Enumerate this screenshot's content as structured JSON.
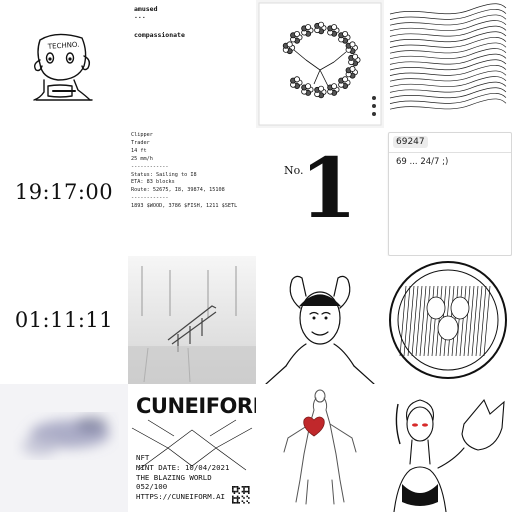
{
  "tiles": {
    "robot": {
      "badge_text": "TECHNO."
    },
    "words": {
      "top_word": "amused",
      "dots": "...",
      "bottom_word": "compassionate"
    },
    "clock_1": {
      "time": "19:17:00"
    },
    "clock_2": {
      "time": "01:11:11"
    },
    "ship_status": {
      "lines": [
        "Clipper",
        "Trader",
        "14 ft",
        "25 mm/h",
        "------------",
        "Status: Sailing to I8",
        "ETA: 83 blocks",
        "Route: 52675, I8, 39874, 15108",
        "------------",
        "1893 $WOOD, 3786 $FISH, 1211 $SETL"
      ]
    },
    "number_one": {
      "prefix": "No.",
      "number": "1"
    },
    "card": {
      "id": "69247",
      "text": "69 ... 24/7 ;)"
    },
    "cuneiform": {
      "title": "CUNEIFORM",
      "lines": [
        "NFT",
        "MINT DATE: 10/04/2021",
        "THE BLAZING WORLD",
        "052/100",
        "HTTPS://CUNEIFORM.AI"
      ]
    }
  },
  "colors": {
    "ink": "#111111",
    "card_border": "#d8d8d8",
    "heart": "#c0282b",
    "eyes": "#d62a2a"
  },
  "icons": [
    "robot-illustration",
    "circle-flower-art",
    "wave-lines-art",
    "architecture-photo",
    "stressed-face-art",
    "circular-engraving-art",
    "blurred-abstract-art",
    "anatomy-heart-art",
    "wolf-woman-art",
    "qr-code-icon"
  ]
}
